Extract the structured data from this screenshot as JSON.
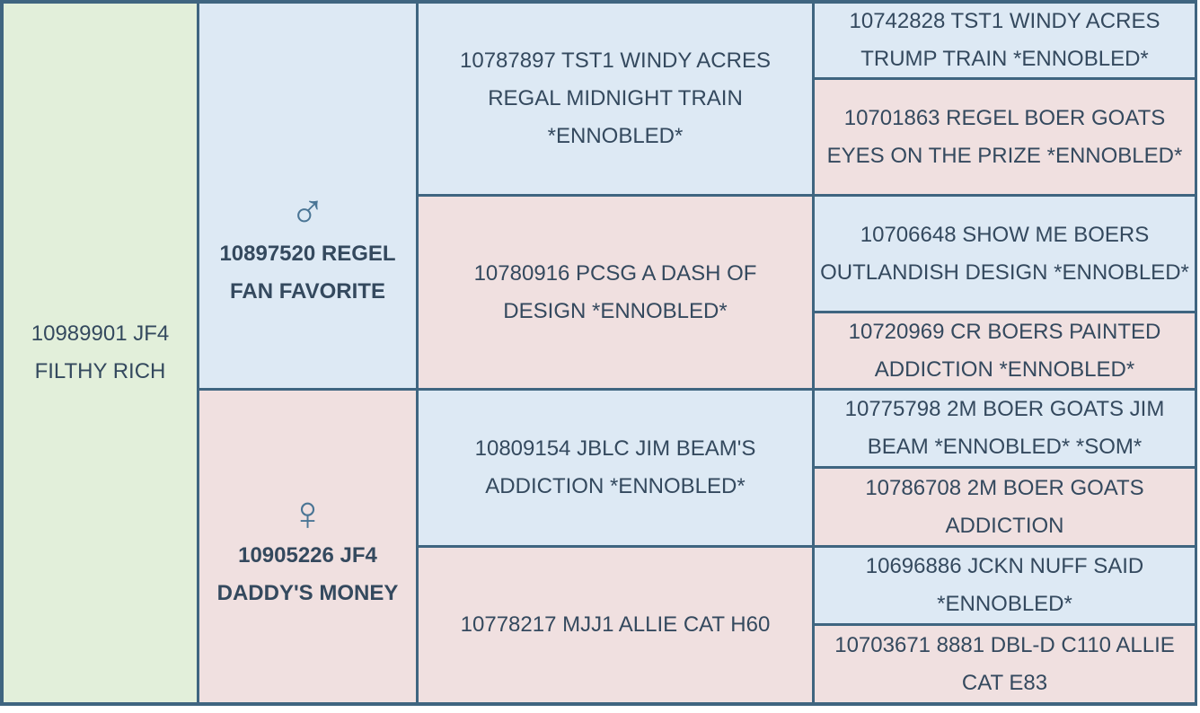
{
  "subject": "10989901 JF4 FILTHY RICH",
  "sire": {
    "symbol": "♂",
    "name": "10897520 REGEL FAN FAVORITE",
    "sire": {
      "name": "10787897 TST1 WINDY ACRES REGAL MIDNIGHT TRAIN *ENNOBLED*",
      "sire": "10742828 TST1 WINDY ACRES TRUMP TRAIN *ENNOBLED*",
      "dam": "10701863 REGEL BOER GOATS EYES ON THE PRIZE *ENNOBLED*"
    },
    "dam": {
      "name": "10780916 PCSG A DASH OF DESIGN *ENNOBLED*",
      "sire": "10706648 SHOW ME BOERS OUTLANDISH DESIGN *ENNOBLED*",
      "dam": "10720969 CR BOERS PAINTED ADDICTION *ENNOBLED*"
    }
  },
  "dam": {
    "symbol": "♀",
    "name": "10905226 JF4 DADDY'S MONEY",
    "sire": {
      "name": "10809154 JBLC JIM BEAM'S ADDICTION *ENNOBLED*",
      "sire": "10775798 2M BOER GOATS JIM BEAM *ENNOBLED* *SOM*",
      "dam": "10786708 2M BOER GOATS ADDICTION"
    },
    "dam": {
      "name": "10778217 MJJ1 ALLIE CAT H60",
      "sire": "10696886 JCKN NUFF SAID *ENNOBLED*",
      "dam": "10703671 8881 DBL-D C110 ALLIE CAT E83"
    }
  }
}
